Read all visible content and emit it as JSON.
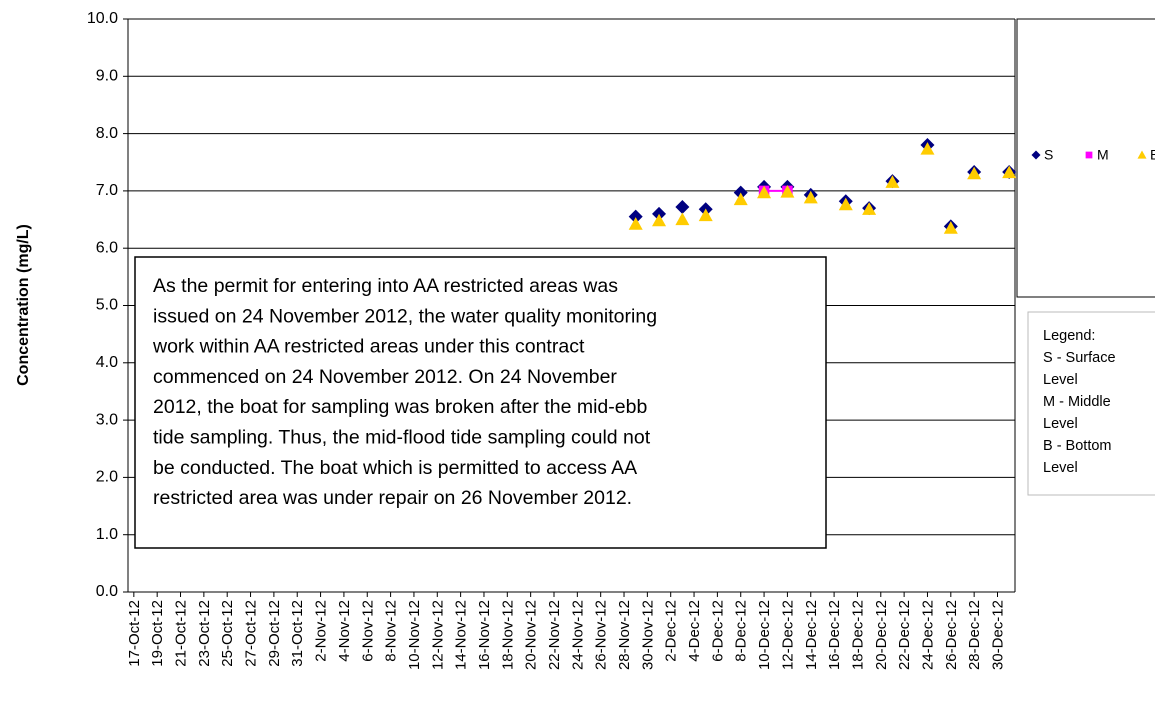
{
  "chart_data": {
    "type": "scatter",
    "y_label": "Concentration (mg/L)",
    "categories": [
      "17-Oct-12",
      null,
      "19-Oct-12",
      null,
      "21-Oct-12",
      null,
      "23-Oct-12",
      null,
      "25-Oct-12",
      null,
      "27-Oct-12",
      null,
      "29-Oct-12",
      null,
      "31-Oct-12",
      null,
      "2-Nov-12",
      null,
      "4-Nov-12",
      null,
      "6-Nov-12",
      null,
      "8-Nov-12",
      null,
      "10-Nov-12",
      null,
      "12-Nov-12",
      null,
      "14-Nov-12",
      null,
      "16-Nov-12",
      null,
      "18-Nov-12",
      null,
      "20-Nov-12",
      null,
      "22-Nov-12",
      null,
      "24-Nov-12",
      null,
      "26-Nov-12",
      null,
      "28-Nov-12",
      null,
      "30-Nov-12",
      null,
      "2-Dec-12",
      null,
      "4-Dec-12",
      null,
      "6-Dec-12",
      null,
      "8-Dec-12",
      null,
      "10-Dec-12",
      null,
      "12-Dec-12",
      null,
      "14-Dec-12",
      null,
      "16-Dec-12",
      null,
      "18-Dec-12",
      null,
      "20-Dec-12",
      null,
      "22-Dec-12",
      null,
      "24-Dec-12",
      null,
      "26-Dec-12",
      null,
      "28-Dec-12",
      null,
      "30-Dec-12",
      null
    ],
    "series": [
      {
        "name": "S",
        "color": "#000080",
        "marker": "diamond",
        "values": [
          null,
          null,
          null,
          null,
          null,
          null,
          null,
          null,
          null,
          null,
          null,
          null,
          null,
          null,
          null,
          null,
          null,
          null,
          null,
          null,
          null,
          null,
          null,
          null,
          null,
          null,
          null,
          null,
          null,
          null,
          null,
          null,
          null,
          null,
          null,
          null,
          null,
          null,
          null,
          null,
          null,
          null,
          null,
          6.55,
          null,
          6.6,
          null,
          6.72,
          null,
          6.68,
          null,
          null,
          6.97,
          null,
          7.07,
          null,
          7.07,
          null,
          6.93,
          null,
          null,
          6.82,
          null,
          6.7,
          null,
          7.17,
          null,
          null,
          7.8,
          null,
          6.38,
          null,
          7.33,
          null,
          null,
          7.33
        ]
      },
      {
        "name": "M",
        "color": "#ff00ff",
        "marker": "square",
        "connect_gaps": true,
        "values": [
          null,
          null,
          null,
          null,
          null,
          null,
          null,
          null,
          null,
          null,
          null,
          null,
          null,
          null,
          null,
          null,
          null,
          null,
          null,
          null,
          null,
          null,
          null,
          null,
          null,
          null,
          null,
          null,
          null,
          null,
          null,
          null,
          null,
          null,
          null,
          null,
          null,
          null,
          null,
          null,
          null,
          null,
          null,
          null,
          null,
          null,
          null,
          null,
          null,
          null,
          null,
          null,
          null,
          null,
          7.0,
          null,
          7.0,
          null,
          null,
          null,
          null,
          null,
          null,
          null,
          null,
          null,
          null,
          null,
          null,
          null,
          null,
          null,
          null,
          null,
          null,
          null
        ]
      },
      {
        "name": "B",
        "color": "#ffcc00",
        "marker": "triangle",
        "values": [
          null,
          null,
          null,
          null,
          null,
          null,
          null,
          null,
          null,
          null,
          null,
          null,
          null,
          null,
          null,
          null,
          null,
          null,
          null,
          null,
          null,
          null,
          null,
          null,
          null,
          null,
          null,
          null,
          null,
          null,
          null,
          null,
          null,
          null,
          null,
          null,
          null,
          null,
          null,
          null,
          null,
          null,
          null,
          6.42,
          null,
          6.48,
          null,
          6.5,
          null,
          6.57,
          null,
          null,
          6.85,
          null,
          6.97,
          null,
          6.98,
          null,
          6.88,
          null,
          null,
          6.76,
          null,
          6.68,
          null,
          7.15,
          null,
          null,
          7.73,
          null,
          6.35,
          null,
          7.3,
          null,
          null,
          7.32
        ]
      }
    ],
    "ylim": [
      0,
      10
    ],
    "yticks": [
      {
        "value": 0,
        "label": "0.0"
      },
      {
        "value": 1,
        "label": "1.0"
      },
      {
        "value": 2,
        "label": "2.0"
      },
      {
        "value": 3,
        "label": "3.0"
      },
      {
        "value": 4,
        "label": "4.0"
      },
      {
        "value": 5,
        "label": "5.0"
      },
      {
        "value": 6,
        "label": "6.0"
      },
      {
        "value": 7,
        "label": "7.0"
      },
      {
        "value": 8,
        "label": "8.0"
      },
      {
        "value": 9,
        "label": "9.0"
      },
      {
        "value": 10,
        "label": "10.0"
      }
    ],
    "grid": true,
    "legend_position": "right",
    "annotation": [
      "As the permit for entering into AA restricted areas was",
      "issued on 24 November 2012, the water quality monitoring",
      "work within AA restricted areas under this contract",
      "commenced on 24 November 2012.  On 24 November",
      "2012, the boat for sampling was broken after the mid-ebb",
      "tide sampling.  Thus, the mid-flood tide sampling could not",
      "be conducted.  The boat which is permitted to access AA",
      "restricted area was under repair on 26 November 2012."
    ],
    "legend_note": [
      "Legend:",
      "S - Surface",
      "Level",
      "M - Middle",
      "Level",
      "B - Bottom",
      "Level"
    ]
  }
}
